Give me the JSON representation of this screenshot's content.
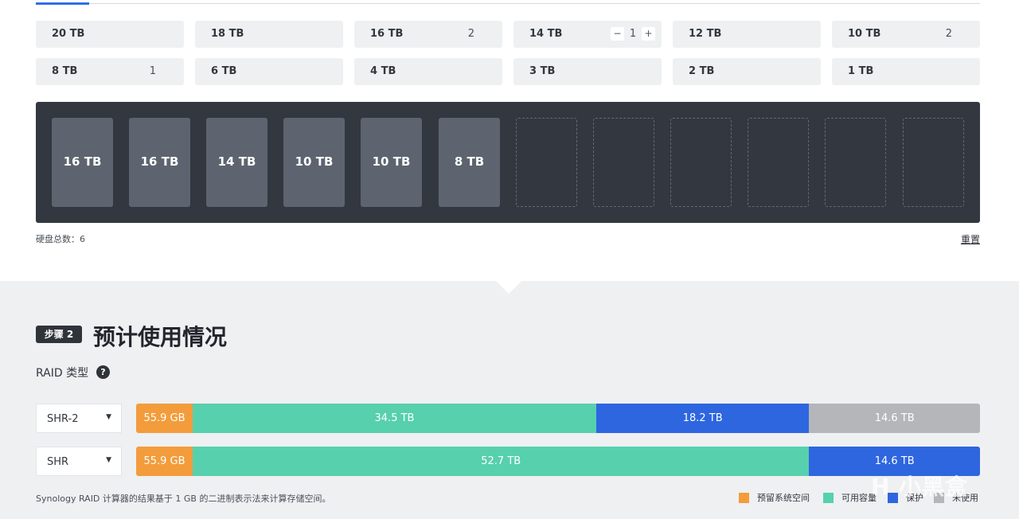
{
  "disk_buttons": [
    {
      "label": "20 TB",
      "count": ""
    },
    {
      "label": "18 TB",
      "count": ""
    },
    {
      "label": "16 TB",
      "count": "2"
    },
    {
      "label": "14 TB",
      "count": "1",
      "stepper": {
        "minus": "−",
        "plus": "+"
      }
    },
    {
      "label": "12 TB",
      "count": ""
    },
    {
      "label": "10 TB",
      "count": "2"
    },
    {
      "label": "8 TB",
      "count": "1"
    },
    {
      "label": "6 TB",
      "count": ""
    },
    {
      "label": "4 TB",
      "count": ""
    },
    {
      "label": "3 TB",
      "count": ""
    },
    {
      "label": "2 TB",
      "count": ""
    },
    {
      "label": "1 TB",
      "count": ""
    }
  ],
  "bay": {
    "slots": [
      "16 TB",
      "16 TB",
      "14 TB",
      "10 TB",
      "10 TB",
      "8 TB",
      "",
      "",
      "",
      "",
      "",
      ""
    ]
  },
  "footer_top": {
    "total_label": "硬盘总数：",
    "total_value": "6",
    "reset_label": "重置"
  },
  "step2": {
    "badge": "步骤 2",
    "title": "预计使用情况",
    "raid_type_label": "RAID 类型",
    "help": "?"
  },
  "rows": [
    {
      "raid": "SHR-2",
      "segments": [
        {
          "type": "reserved",
          "label": "55.9 GB",
          "value_tb": 0.0559
        },
        {
          "type": "available",
          "label": "34.5 TB",
          "value_tb": 34.5
        },
        {
          "type": "protection",
          "label": "18.2 TB",
          "value_tb": 18.2
        },
        {
          "type": "unused",
          "label": "14.6 TB",
          "value_tb": 14.6
        }
      ]
    },
    {
      "raid": "SHR",
      "segments": [
        {
          "type": "reserved",
          "label": "55.9 GB",
          "value_tb": 0.0559
        },
        {
          "type": "available",
          "label": "52.7 TB",
          "value_tb": 52.7
        },
        {
          "type": "protection",
          "label": "14.6 TB",
          "value_tb": 14.6
        }
      ]
    }
  ],
  "footnote": "Synology RAID 计算器的结果基于 1 GB 的二进制表示法来计算存储空间。",
  "legend": [
    {
      "type": "reserved",
      "label": "预留系统空间"
    },
    {
      "type": "available",
      "label": "可用容量"
    },
    {
      "type": "protection",
      "label": "保护"
    },
    {
      "type": "unused",
      "label": "未使用"
    }
  ],
  "colors": {
    "reserved": "#f39c3c",
    "available": "#57d0ad",
    "protection": "#2e66e0",
    "unused": "#b4b6ba"
  },
  "watermark": "小黑盒"
}
